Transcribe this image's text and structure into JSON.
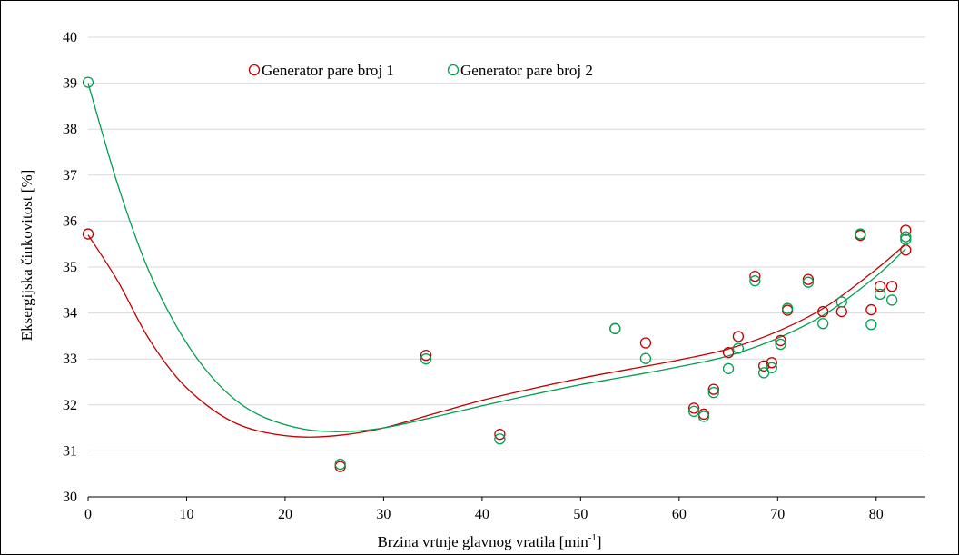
{
  "chart_data": {
    "type": "scatter",
    "title": "",
    "xlabel": "Brzina vrtnje glavnog vratila [min",
    "xlabel_sup": "-1",
    "xlabel_end": "]",
    "ylabel": "Eksergijska činkovitost [%]",
    "xlim": [
      0,
      85
    ],
    "ylim": [
      30,
      40
    ],
    "x_ticks": [
      0,
      10,
      20,
      30,
      40,
      50,
      60,
      70,
      80
    ],
    "y_ticks": [
      30,
      31,
      32,
      33,
      34,
      35,
      36,
      37,
      38,
      39,
      40
    ],
    "grid": "horizontal",
    "legend_position": "top-center",
    "series": [
      {
        "name": "Generator pare broj 1",
        "color": "#c00000",
        "marker": "open-circle",
        "x": [
          0,
          25.6,
          34.3,
          41.8,
          53.5,
          56.6,
          61.5,
          62.5,
          63.5,
          65.0,
          66.0,
          67.7,
          68.6,
          69.4,
          70.3,
          71.0,
          73.1,
          74.6,
          76.5,
          78.4,
          79.5,
          80.4,
          81.6,
          83.0,
          83.0
        ],
        "y": [
          35.72,
          30.66,
          33.08,
          31.36,
          33.66,
          33.35,
          31.93,
          31.8,
          32.34,
          33.14,
          33.49,
          34.8,
          32.85,
          32.92,
          33.4,
          34.06,
          34.73,
          34.03,
          34.03,
          35.69,
          34.07,
          34.58,
          34.58,
          35.8,
          35.37
        ],
        "trend": "polynomial",
        "trend_x": [
          0,
          3,
          6,
          9,
          12,
          15,
          18,
          22,
          26,
          30,
          35,
          40,
          45,
          50,
          55,
          60,
          65,
          70,
          75,
          80,
          83
        ],
        "trend_y": [
          35.7,
          34.7,
          33.5,
          32.6,
          32.0,
          31.6,
          31.4,
          31.3,
          31.35,
          31.5,
          31.8,
          32.1,
          32.35,
          32.58,
          32.78,
          32.98,
          33.22,
          33.6,
          34.15,
          34.95,
          35.5
        ]
      },
      {
        "name": "Generator pare broj 2",
        "color": "#00a050",
        "marker": "open-circle",
        "x": [
          0,
          25.6,
          34.3,
          41.8,
          53.5,
          56.6,
          61.5,
          62.5,
          63.5,
          65.0,
          66.0,
          67.7,
          68.6,
          69.4,
          70.3,
          71.0,
          73.1,
          74.6,
          76.5,
          78.4,
          79.5,
          80.4,
          81.6,
          83.0,
          83.0
        ],
        "y": [
          39.02,
          30.71,
          33.0,
          31.26,
          33.66,
          33.01,
          31.86,
          31.75,
          32.27,
          32.79,
          33.23,
          34.7,
          32.7,
          32.81,
          33.32,
          34.1,
          34.67,
          33.77,
          34.24,
          35.72,
          33.75,
          34.41,
          34.28,
          35.66,
          35.6
        ],
        "trend": "polynomial",
        "trend_x": [
          0,
          3,
          6,
          9,
          12,
          15,
          18,
          22,
          26,
          30,
          35,
          40,
          45,
          50,
          55,
          60,
          65,
          70,
          75,
          80,
          83
        ],
        "trend_y": [
          39.0,
          36.8,
          35.0,
          33.7,
          32.75,
          32.1,
          31.72,
          31.47,
          31.42,
          31.5,
          31.73,
          31.98,
          32.22,
          32.44,
          32.63,
          32.83,
          33.07,
          33.45,
          34.0,
          34.8,
          35.4
        ]
      }
    ]
  }
}
